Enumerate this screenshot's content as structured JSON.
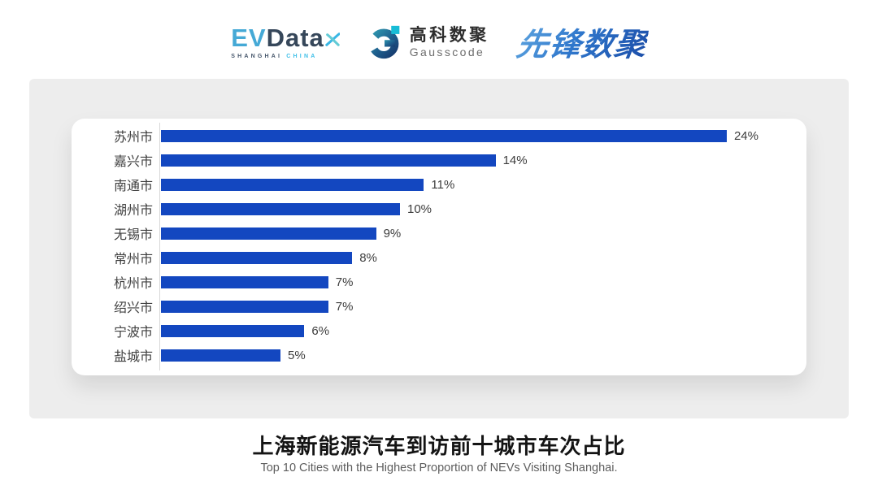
{
  "header": {
    "evdata_logo": {
      "ev": "EV",
      "data": "Data",
      "sub_shanghai": "SHANGHAI",
      "sub_china": "CHINA"
    },
    "gausscode_logo": {
      "name_cn": "高科数聚",
      "name_en": "Gausscode"
    },
    "xianfeng_logo": {
      "text": "先锋数聚"
    }
  },
  "chart_data": {
    "type": "bar",
    "orientation": "horizontal",
    "title": "上海新能源汽车到访前十城市车次占比",
    "subtitle": "Top 10 Cities with the Highest Proportion of NEVs Visiting Shanghai.",
    "categories": [
      "苏州市",
      "嘉兴市",
      "南通市",
      "湖州市",
      "无锡市",
      "常州市",
      "杭州市",
      "绍兴市",
      "宁波市",
      "盐城市"
    ],
    "values": [
      24,
      14,
      11,
      10,
      9,
      8,
      7,
      7,
      6,
      5
    ],
    "value_labels": [
      "24%",
      "14%",
      "11%",
      "10%",
      "9%",
      "8%",
      "7%",
      "7%",
      "6%",
      "5%"
    ],
    "unit": "%",
    "xlim": [
      0,
      25
    ],
    "grid": false,
    "legend": false,
    "bar_color": "#1347c0",
    "category_label_color": "#3f3f3f",
    "value_label_color": "#3c3c3c"
  }
}
